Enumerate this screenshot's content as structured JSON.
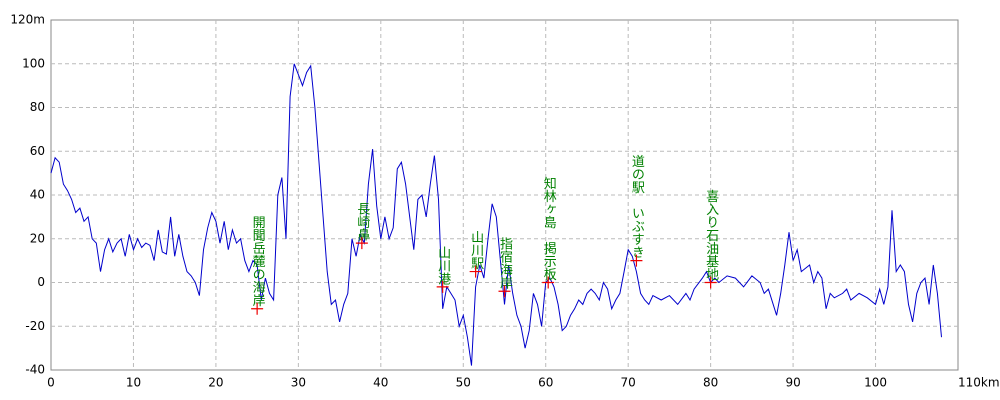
{
  "chart_data": {
    "type": "line",
    "x": [
      0,
      0.5,
      1,
      1.5,
      2,
      2.5,
      3,
      3.5,
      4,
      4.5,
      5,
      5.5,
      6,
      6.5,
      7,
      7.5,
      8,
      8.5,
      9,
      9.5,
      10,
      10.5,
      11,
      11.5,
      12,
      12.5,
      13,
      13.5,
      14,
      14.5,
      15,
      15.5,
      16,
      16.5,
      17,
      17.5,
      18,
      18.5,
      19,
      19.5,
      20,
      20.5,
      21,
      21.5,
      22,
      22.5,
      23,
      23.5,
      24,
      24.5,
      25,
      25.5,
      26,
      26.5,
      27,
      27.5,
      28,
      28.5,
      29,
      29.5,
      30,
      30.5,
      31,
      31.5,
      32,
      32.5,
      33,
      33.5,
      34,
      34.5,
      35,
      35.5,
      36,
      36.5,
      37,
      37.5,
      38,
      38.5,
      39,
      39.5,
      40,
      40.5,
      41,
      41.5,
      42,
      42.5,
      43,
      43.5,
      44,
      44.5,
      45,
      45.5,
      46,
      46.5,
      47,
      47.5,
      48,
      48.5,
      49,
      49.5,
      50,
      50.5,
      51,
      51.5,
      52,
      52.5,
      53,
      53.5,
      54,
      54.5,
      55,
      55.5,
      56,
      56.5,
      57,
      57.5,
      58,
      58.5,
      59,
      59.5,
      60,
      60.5,
      61,
      61.5,
      62,
      62.5,
      63,
      63.5,
      64,
      64.5,
      65,
      65.5,
      66,
      66.5,
      67,
      67.5,
      68,
      68.5,
      69,
      69.5,
      70,
      70.5,
      71,
      71.5,
      72,
      72.5,
      73,
      74,
      75,
      76,
      77,
      77.5,
      78,
      79,
      79.5,
      80,
      80.5,
      81,
      82,
      83,
      84,
      85,
      86,
      86.5,
      87,
      88,
      88.5,
      89,
      89.5,
      90,
      90.5,
      91,
      92,
      92.5,
      93,
      93.5,
      94,
      94.5,
      95,
      96,
      96.5,
      97,
      98,
      99,
      100,
      100.5,
      101,
      101.5,
      102,
      102.5,
      103,
      103.5,
      104,
      104.5,
      105,
      105.5,
      106,
      106.5,
      107,
      107.5,
      108
    ],
    "series": [
      {
        "color": "#0000cc",
        "values": [
          50,
          57,
          55,
          45,
          42,
          38,
          32,
          34,
          28,
          30,
          20,
          18,
          5,
          15,
          20,
          14,
          18,
          20,
          12,
          22,
          15,
          20,
          16,
          18,
          17,
          10,
          24,
          14,
          13,
          30,
          12,
          22,
          12,
          5,
          3,
          0,
          -6,
          15,
          25,
          32,
          28,
          18,
          28,
          15,
          24,
          18,
          20,
          10,
          5,
          10,
          8,
          -8,
          2,
          -5,
          -8,
          40,
          48,
          20,
          85,
          100,
          95,
          90,
          96,
          99,
          80,
          55,
          30,
          5,
          -10,
          -8,
          -18,
          -10,
          -5,
          20,
          12,
          22,
          18,
          45,
          61,
          35,
          20,
          30,
          20,
          25,
          52,
          55,
          45,
          30,
          15,
          38,
          40,
          30,
          45,
          58,
          38,
          -12,
          -2,
          -5,
          -8,
          -20,
          -15,
          -25,
          -38,
          -2,
          8,
          2,
          20,
          36,
          30,
          10,
          -10,
          8,
          -5,
          -15,
          -20,
          -30,
          -22,
          -5,
          -10,
          -20,
          0,
          2,
          -2,
          -10,
          -22,
          -20,
          -15,
          -12,
          -8,
          -10,
          -5,
          -3,
          -5,
          -8,
          0,
          -3,
          -12,
          -8,
          -5,
          5,
          15,
          12,
          5,
          -5,
          -8,
          -10,
          -6,
          -8,
          -6,
          -10,
          -5,
          -8,
          -3,
          2,
          5,
          0,
          2,
          0,
          3,
          2,
          -2,
          3,
          0,
          -5,
          -3,
          -15,
          -5,
          8,
          23,
          10,
          15,
          5,
          8,
          0,
          5,
          2,
          -12,
          -5,
          -7,
          -5,
          -3,
          -8,
          -5,
          -7,
          -10,
          -3,
          -10,
          -2,
          33,
          5,
          8,
          5,
          -10,
          -18,
          -5,
          0,
          2,
          -10,
          8,
          -5,
          -25
        ]
      }
    ],
    "xlim": [
      0,
      110
    ],
    "ylim": [
      -40,
      120
    ],
    "xticks": [
      0,
      10,
      20,
      30,
      40,
      50,
      60,
      70,
      80,
      90,
      100,
      {
        "value": 110,
        "label": "110km"
      }
    ],
    "yticks": [
      -40,
      -20,
      0,
      20,
      40,
      60,
      80,
      100,
      {
        "value": 120,
        "label": "120m"
      }
    ],
    "grid": true,
    "annotations": [
      {
        "label": "開聞岳麓の海岸",
        "x": 25,
        "y": -12
      },
      {
        "label": "長崎鼻",
        "x": 37.7,
        "y": 18
      },
      {
        "label": "山川港",
        "x": 47.5,
        "y": -2
      },
      {
        "label": "山川駅",
        "x": 51.5,
        "y": 5
      },
      {
        "label": "指宿海岸",
        "x": 55,
        "y": -4
      },
      {
        "label": "知林ヶ島　掲示板",
        "x": 60.3,
        "y": 0
      },
      {
        "label": "道の駅　いぶすき",
        "x": 71,
        "y": 10
      },
      {
        "label": "喜入り石油基地",
        "x": 80,
        "y": 0
      }
    ]
  }
}
